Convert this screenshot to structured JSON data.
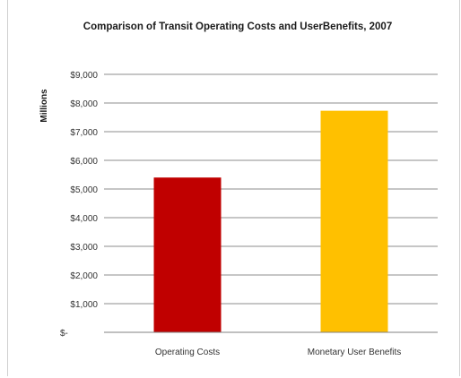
{
  "chart_data": {
    "type": "bar",
    "title": "Comparison of Transit Operating Costs and UserBenefits, 2007",
    "ylabel": "Millions",
    "xlabel": "",
    "categories": [
      "Operating Costs",
      "Monetary User Benefits"
    ],
    "values": [
      5400,
      7730
    ],
    "colors": [
      "#c00000",
      "#ffc000"
    ],
    "ylim": [
      0,
      9000
    ],
    "yticks": [
      0,
      1000,
      2000,
      3000,
      4000,
      5000,
      6000,
      7000,
      8000,
      9000
    ],
    "ytick_labels": [
      "$-",
      "$1,000",
      "$2,000",
      "$3,000",
      "$4,000",
      "$5,000",
      "$6,000",
      "$7,000",
      "$8,000",
      "$9,000"
    ],
    "grid": true,
    "legend": "none"
  }
}
